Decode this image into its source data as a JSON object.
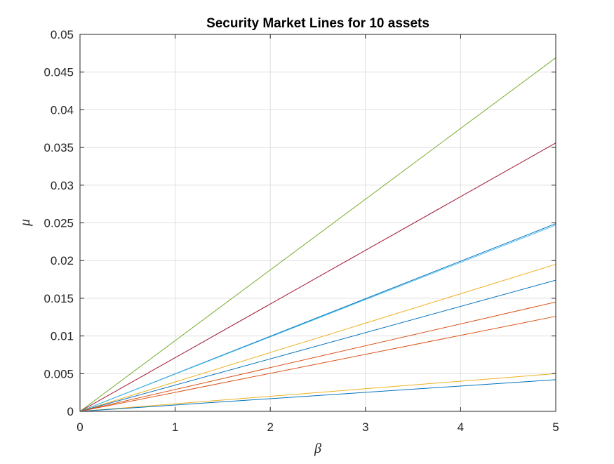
{
  "chart_data": {
    "type": "line",
    "title": "Security Market Lines for 10 assets",
    "xlabel": "β",
    "ylabel": "μ",
    "xlim": [
      0,
      5
    ],
    "ylim": [
      0,
      0.05
    ],
    "grid": true,
    "legend": "none",
    "xticks": [
      0,
      1,
      2,
      3,
      4,
      5
    ],
    "xtick_labels": [
      "0",
      "1",
      "2",
      "3",
      "4",
      "5"
    ],
    "yticks": [
      0,
      0.005,
      0.01,
      0.015,
      0.02,
      0.025,
      0.03,
      0.035,
      0.04,
      0.045,
      0.05
    ],
    "ytick_labels": [
      "0",
      "0.005",
      "0.01",
      "0.015",
      "0.02",
      "0.025",
      "0.03",
      "0.035",
      "0.04",
      "0.045",
      "0.05"
    ],
    "series": [
      {
        "color": "#77AC30",
        "x": [
          0,
          5
        ],
        "y": [
          0,
          0.0469
        ]
      },
      {
        "color": "#A2142F",
        "x": [
          0,
          5
        ],
        "y": [
          0,
          0.0356
        ]
      },
      {
        "color": "#0072BD",
        "x": [
          0,
          5
        ],
        "y": [
          0,
          0.0249
        ]
      },
      {
        "color": "#4DBEEE",
        "x": [
          0,
          5
        ],
        "y": [
          0,
          0.0247
        ]
      },
      {
        "color": "#EDB120",
        "x": [
          0,
          5
        ],
        "y": [
          0,
          0.0195
        ]
      },
      {
        "color": "#0072BD",
        "x": [
          0,
          5
        ],
        "y": [
          0,
          0.0174
        ]
      },
      {
        "color": "#D95319",
        "x": [
          0,
          5
        ],
        "y": [
          0,
          0.0145
        ]
      },
      {
        "color": "#D95319",
        "x": [
          0,
          5
        ],
        "y": [
          0,
          0.0126
        ]
      },
      {
        "color": "#EDB120",
        "x": [
          0,
          5
        ],
        "y": [
          0,
          0.005
        ]
      },
      {
        "color": "#0072BD",
        "x": [
          0,
          5
        ],
        "y": [
          0,
          0.0042
        ]
      }
    ]
  }
}
